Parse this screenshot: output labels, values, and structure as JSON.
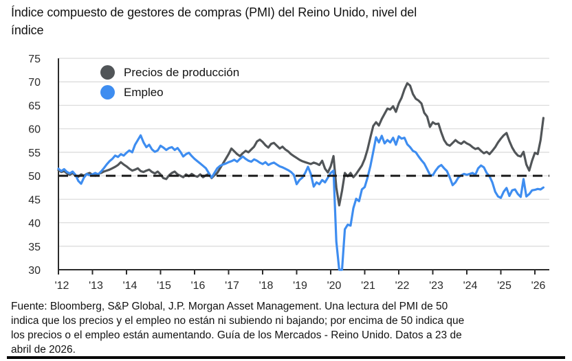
{
  "page": {
    "title": "Índice compuesto de gestores de compras (PMI) del Reino Unido, nivel del índice",
    "source_note": "Fuente: Bloomberg, S&P Global, J.P. Morgan Asset Management. Una lectura del PMI de 50 indica que los precios y el empleo no están ni subiendo ni bajando; por encima de 50 indica que los precios o el empleo están aumentando. Guía de los Mercados - Reino Unido. Datos a 23 de abril de 2026."
  },
  "colors": {
    "producer_prices": "#515558",
    "employment": "#3e8df0",
    "grid": "#d9d9d9",
    "axis": "#2b2b2b",
    "reference": "#1a1a1a"
  },
  "chart_data": {
    "type": "line",
    "title": "Índice compuesto de gestores de compras (PMI) del Reino Unido, nivel del índice",
    "xlabel": "",
    "ylabel": "nivel del índice",
    "ylim": [
      30,
      75
    ],
    "ytick_step": 5,
    "grid": "horizontal",
    "legend_position": "top-left-inside",
    "x_start_year": 2012,
    "x_step_months": 1,
    "x_tick_labels": [
      "'12",
      "'13",
      "'14",
      "'15",
      "'16",
      "'17",
      "'18",
      "'19",
      "'20",
      "'21",
      "'22",
      "'23",
      "'24",
      "'25",
      "'26"
    ],
    "reference_line": {
      "value": 50,
      "style": "dashed",
      "color": "#1a1a1a"
    },
    "series": [
      {
        "name": "Precios de producción",
        "color": "#515558",
        "values": [
          51.2,
          50.8,
          51.0,
          50.5,
          50.2,
          50.6,
          50.0,
          49.8,
          50.3,
          50.0,
          50.4,
          50.6,
          50.2,
          50.0,
          50.4,
          50.6,
          50.9,
          51.1,
          51.3,
          51.6,
          51.9,
          52.3,
          52.9,
          52.4,
          52.0,
          51.5,
          51.1,
          51.3,
          51.6,
          51.0,
          50.8,
          51.1,
          51.3,
          50.8,
          50.5,
          50.9,
          50.3,
          49.5,
          49.3,
          50.1,
          50.6,
          50.9,
          50.3,
          50.0,
          49.7,
          50.3,
          49.9,
          50.4,
          50.0,
          49.8,
          50.3,
          49.7,
          50.1,
          50.4,
          49.5,
          50.1,
          50.6,
          51.6,
          52.6,
          53.6,
          54.6,
          55.8,
          55.2,
          54.6,
          54.2,
          54.8,
          55.3,
          55.0,
          55.6,
          56.2,
          57.3,
          57.7,
          57.2,
          56.5,
          56.0,
          56.8,
          57.0,
          56.4,
          55.8,
          56.2,
          55.6,
          55.2,
          54.6,
          54.2,
          53.8,
          53.4,
          53.1,
          52.9,
          52.7,
          52.5,
          52.8,
          52.6,
          52.3,
          53.2,
          51.5,
          50.7,
          52.0,
          54.2,
          47.5,
          43.7,
          46.8,
          50.6,
          49.9,
          50.6,
          49.7,
          50.4,
          51.3,
          52.2,
          53.6,
          55.6,
          58.2,
          60.6,
          61.4,
          60.7,
          62.1,
          63.2,
          64.3,
          64.1,
          64.8,
          63.6,
          65.4,
          66.6,
          68.4,
          69.7,
          69.2,
          67.4,
          66.4,
          66.0,
          65.4,
          63.4,
          62.6,
          60.4,
          61.4,
          61.0,
          61.1,
          59.2,
          57.6,
          56.7,
          56.4,
          57.0,
          57.6,
          57.1,
          56.8,
          57.3,
          56.9,
          56.6,
          56.1,
          55.7,
          55.9,
          55.3,
          54.8,
          55.1,
          54.6,
          55.3,
          56.1,
          57.1,
          57.9,
          58.6,
          59.1,
          57.4,
          56.0,
          55.0,
          54.3,
          54.1,
          55.1,
          52.4,
          51.1,
          53.2,
          54.9,
          54.6,
          57.6,
          62.3
        ]
      },
      {
        "name": "Empleo",
        "color": "#3e8df0",
        "values": [
          51.5,
          51.0,
          51.4,
          50.8,
          50.5,
          50.9,
          50.2,
          48.9,
          48.3,
          49.6,
          50.4,
          50.1,
          50.3,
          50.6,
          50.3,
          50.9,
          51.6,
          52.4,
          53.1,
          53.6,
          54.3,
          54.0,
          54.6,
          54.3,
          54.9,
          55.4,
          55.0,
          56.6,
          57.6,
          58.6,
          57.1,
          56.1,
          56.6,
          55.6,
          55.1,
          55.4,
          56.4,
          56.0,
          55.5,
          55.9,
          56.1,
          55.5,
          55.9,
          55.1,
          54.1,
          54.6,
          54.9,
          54.2,
          53.6,
          53.1,
          52.6,
          52.1,
          51.6,
          50.6,
          49.6,
          50.6,
          51.6,
          52.1,
          52.4,
          52.6,
          52.9,
          53.1,
          53.4,
          53.0,
          53.6,
          54.1,
          53.6,
          53.2,
          53.0,
          53.5,
          53.2,
          52.8,
          52.5,
          52.9,
          52.3,
          52.6,
          52.8,
          52.4,
          52.0,
          51.8,
          51.5,
          51.2,
          50.8,
          50.2,
          48.2,
          49.1,
          49.6,
          50.6,
          51.9,
          50.4,
          47.7,
          48.6,
          48.2,
          49.1,
          48.6,
          49.6,
          50.6,
          51.1,
          36.0,
          28.5,
          29.5,
          38.6,
          39.6,
          39.4,
          43.1,
          45.1,
          44.6,
          47.1,
          47.6,
          49.6,
          52.1,
          55.1,
          58.2,
          57.1,
          58.5,
          56.9,
          57.6,
          57.1,
          58.1,
          56.6,
          58.4,
          57.9,
          58.1,
          56.7,
          56.1,
          55.3,
          55.0,
          54.1,
          53.3,
          52.6,
          51.4,
          50.2,
          50.1,
          51.1,
          51.9,
          52.3,
          51.6,
          51.0,
          49.6,
          48.0,
          48.6,
          49.6,
          50.1,
          50.4,
          50.2,
          50.4,
          50.6,
          50.2,
          51.6,
          52.2,
          51.8,
          50.6,
          49.9,
          48.6,
          46.6,
          45.6,
          45.3,
          46.6,
          47.4,
          45.7,
          46.9,
          47.1,
          46.1,
          45.5,
          49.3,
          45.6,
          46.1,
          46.9,
          47.0,
          47.2,
          47.1,
          47.5
        ]
      }
    ]
  }
}
